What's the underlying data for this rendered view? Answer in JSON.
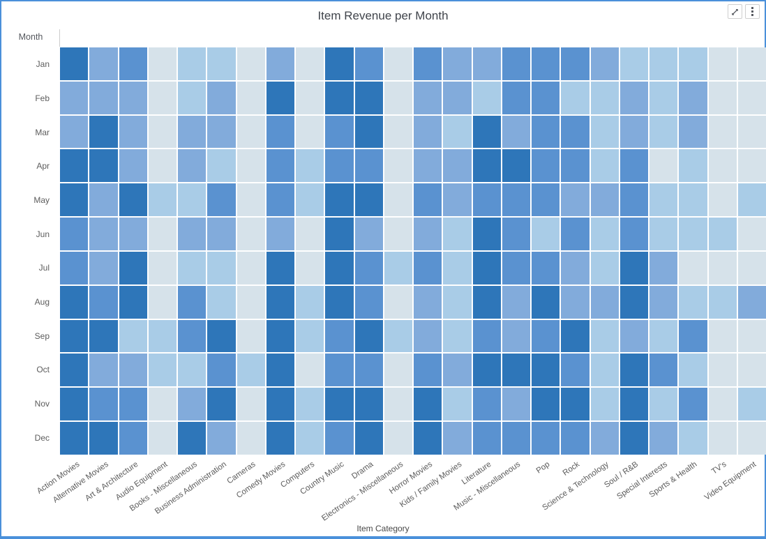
{
  "widget": {
    "title": "Item Revenue per Month",
    "toolbar": {
      "expand_icon": "expand-diagonal-arrows",
      "menu_icon": "vertical-ellipsis"
    }
  },
  "axes": {
    "y_header": "Month",
    "x_title": "Item Category"
  },
  "colors": {
    "card_border": "#4a90da",
    "axis_text": "#5c5c5c",
    "title_text": "#40444b"
  },
  "chart_data": {
    "type": "heatmap",
    "title": "Item Revenue per Month",
    "xlabel": "Item Category",
    "ylabel": "Month",
    "legend": "none (no visible legend; shading encodes relative revenue, level 1 = lightest/lowest, 5 = darkest/highest)",
    "grid": "white 2px gaps between cells",
    "rows": [
      "Jan",
      "Feb",
      "Mar",
      "Apr",
      "May",
      "Jun",
      "Jul",
      "Aug",
      "Sep",
      "Oct",
      "Nov",
      "Dec"
    ],
    "categories": [
      "Action Movies",
      "Alternative Movies",
      "Art & Architecture",
      "Audio Equipment",
      "Books - Miscellaneous",
      "Business Administration",
      "Cameras",
      "Comedy Movies",
      "Computers",
      "Country Music",
      "Drama",
      "Electronics - Miscellaneous",
      "Horror Movies",
      "Kids / Family Movies",
      "Literature",
      "Music - Miscellaneous",
      "Pop",
      "Rock",
      "Science & Technology",
      "Soul / R&B",
      "Special Interests",
      "Sports & Health",
      "TV's",
      "Video Equipment"
    ],
    "palette": [
      "#d6e2ea",
      "#a9cce7",
      "#82abdb",
      "#5a92d0",
      "#2e76b9"
    ],
    "levels": [
      [
        5,
        3,
        4,
        1,
        2,
        2,
        1,
        3,
        1,
        5,
        4,
        1,
        4,
        3,
        3,
        4,
        4,
        4,
        3,
        2,
        2,
        2,
        1,
        1
      ],
      [
        3,
        3,
        3,
        1,
        2,
        3,
        1,
        5,
        1,
        5,
        5,
        1,
        3,
        3,
        2,
        4,
        4,
        2,
        2,
        3,
        2,
        3,
        1,
        1
      ],
      [
        3,
        5,
        3,
        1,
        3,
        3,
        1,
        4,
        1,
        4,
        5,
        1,
        3,
        2,
        5,
        3,
        4,
        4,
        2,
        3,
        2,
        3,
        1,
        1
      ],
      [
        5,
        5,
        3,
        1,
        3,
        2,
        1,
        4,
        2,
        4,
        4,
        1,
        3,
        3,
        5,
        5,
        4,
        4,
        2,
        4,
        1,
        2,
        1,
        1
      ],
      [
        5,
        3,
        5,
        2,
        2,
        4,
        1,
        4,
        2,
        5,
        5,
        1,
        4,
        3,
        4,
        4,
        4,
        3,
        3,
        4,
        2,
        2,
        1,
        2
      ],
      [
        4,
        3,
        3,
        1,
        3,
        3,
        1,
        3,
        1,
        5,
        3,
        1,
        3,
        2,
        5,
        4,
        2,
        4,
        2,
        4,
        2,
        2,
        2,
        1
      ],
      [
        4,
        3,
        5,
        1,
        2,
        2,
        1,
        5,
        1,
        5,
        4,
        2,
        4,
        2,
        5,
        4,
        4,
        3,
        2,
        5,
        3,
        1,
        1,
        1
      ],
      [
        5,
        4,
        5,
        1,
        4,
        2,
        1,
        5,
        2,
        5,
        4,
        1,
        3,
        2,
        5,
        3,
        5,
        3,
        3,
        5,
        3,
        2,
        2,
        3
      ],
      [
        5,
        5,
        2,
        2,
        4,
        5,
        1,
        5,
        2,
        4,
        5,
        2,
        3,
        2,
        4,
        3,
        4,
        5,
        2,
        3,
        2,
        4,
        1,
        1
      ],
      [
        5,
        3,
        3,
        2,
        2,
        4,
        2,
        5,
        1,
        4,
        4,
        1,
        4,
        3,
        5,
        5,
        5,
        4,
        2,
        5,
        4,
        2,
        1,
        1
      ],
      [
        5,
        4,
        4,
        1,
        3,
        5,
        1,
        5,
        2,
        5,
        5,
        1,
        5,
        2,
        4,
        3,
        5,
        5,
        2,
        5,
        2,
        4,
        1,
        2
      ],
      [
        5,
        5,
        4,
        1,
        5,
        3,
        1,
        5,
        2,
        4,
        5,
        1,
        5,
        3,
        4,
        4,
        4,
        4,
        3,
        5,
        3,
        2,
        1,
        1
      ]
    ]
  }
}
